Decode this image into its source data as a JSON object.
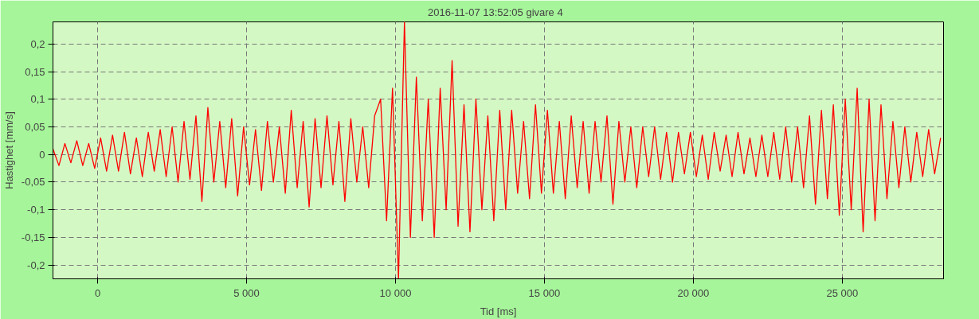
{
  "chart_data": {
    "type": "line",
    "title": "2016-11-07  13:52:05  givare 4",
    "xlabel": "Tid [ms]",
    "ylabel": "Hastighet [mm/s]",
    "x": [
      -1500,
      -1300,
      -1100,
      -900,
      -700,
      -500,
      -300,
      -100,
      100,
      300,
      500,
      700,
      900,
      1100,
      1300,
      1500,
      1700,
      1900,
      2100,
      2300,
      2500,
      2700,
      2900,
      3100,
      3300,
      3500,
      3700,
      3900,
      4100,
      4300,
      4500,
      4700,
      4900,
      5100,
      5300,
      5500,
      5700,
      5900,
      6100,
      6300,
      6500,
      6700,
      6900,
      7100,
      7300,
      7500,
      7700,
      7900,
      8100,
      8300,
      8500,
      8700,
      8900,
      9100,
      9300,
      9500,
      9700,
      9900,
      10100,
      10300,
      10500,
      10700,
      10900,
      11100,
      11300,
      11500,
      11700,
      11900,
      12100,
      12300,
      12500,
      12700,
      12900,
      13100,
      13300,
      13500,
      13700,
      13900,
      14100,
      14300,
      14500,
      14700,
      14900,
      15100,
      15300,
      15500,
      15700,
      15900,
      16100,
      16300,
      16500,
      16700,
      16900,
      17100,
      17300,
      17500,
      17700,
      17900,
      18100,
      18300,
      18500,
      18700,
      18900,
      19100,
      19300,
      19500,
      19700,
      19900,
      20100,
      20300,
      20500,
      20700,
      20900,
      21100,
      21300,
      21500,
      21700,
      21900,
      22100,
      22300,
      22500,
      22700,
      22900,
      23100,
      23300,
      23500,
      23700,
      23900,
      24100,
      24300,
      24500,
      24700,
      24900,
      25100,
      25300,
      25500,
      25700,
      25900,
      26100,
      26300,
      26500,
      26700,
      26900,
      27100,
      27300,
      27500,
      27700,
      27900,
      28100,
      28300
    ],
    "series": [
      {
        "color": "#ff0000",
        "values": [
          0.01,
          -0.02,
          0.02,
          -0.015,
          0.025,
          -0.02,
          0.02,
          -0.025,
          0.03,
          -0.03,
          0.035,
          -0.03,
          0.04,
          -0.035,
          0.03,
          -0.04,
          0.04,
          -0.03,
          0.045,
          -0.04,
          0.05,
          -0.05,
          0.06,
          -0.045,
          0.07,
          -0.085,
          0.085,
          -0.05,
          0.06,
          -0.06,
          0.065,
          -0.075,
          0.05,
          -0.055,
          0.045,
          -0.065,
          0.06,
          -0.05,
          0.05,
          -0.07,
          0.08,
          -0.06,
          0.06,
          -0.095,
          0.065,
          -0.06,
          0.07,
          -0.055,
          0.06,
          -0.085,
          0.065,
          -0.05,
          0.05,
          -0.06,
          0.07,
          0.1,
          -0.12,
          0.12,
          -0.225,
          0.24,
          -0.15,
          0.14,
          -0.12,
          0.1,
          -0.15,
          0.12,
          -0.1,
          0.17,
          -0.13,
          0.09,
          -0.14,
          0.1,
          -0.1,
          0.07,
          -0.12,
          0.08,
          -0.1,
          0.08,
          -0.07,
          0.06,
          -0.08,
          0.09,
          -0.07,
          0.08,
          -0.07,
          0.06,
          -0.08,
          0.07,
          -0.06,
          0.06,
          -0.07,
          0.06,
          -0.05,
          0.07,
          -0.09,
          0.06,
          -0.05,
          0.05,
          -0.06,
          0.05,
          -0.04,
          0.05,
          -0.045,
          0.04,
          -0.05,
          0.04,
          -0.035,
          0.04,
          -0.04,
          0.035,
          -0.045,
          0.04,
          -0.03,
          0.035,
          -0.04,
          0.04,
          -0.035,
          0.03,
          -0.04,
          0.035,
          -0.04,
          0.04,
          -0.045,
          0.05,
          -0.05,
          0.05,
          -0.06,
          0.07,
          -0.09,
          0.08,
          -0.08,
          0.09,
          -0.11,
          0.1,
          -0.1,
          0.12,
          -0.14,
          0.1,
          -0.12,
          0.09,
          -0.08,
          0.06,
          -0.06,
          0.05,
          -0.05,
          0.04,
          -0.04,
          0.045,
          -0.035,
          0.03
        ]
      }
    ],
    "xlim": [
      -1500,
      28400
    ],
    "ylim": [
      -0.225,
      0.24
    ],
    "xticks": [
      0,
      {
        "value": 5000,
        "label": "5 000"
      },
      {
        "value": 10000,
        "label": "10 000"
      },
      {
        "value": 15000,
        "label": "15 000"
      },
      {
        "value": 20000,
        "label": "20 000"
      },
      {
        "value": 25000,
        "label": "25 000"
      }
    ],
    "yticks": [
      {
        "value": -0.2,
        "label": "-0,2"
      },
      {
        "value": -0.15,
        "label": "-0,15"
      },
      {
        "value": -0.1,
        "label": "-0,1"
      },
      {
        "value": -0.05,
        "label": "-0,05"
      },
      0,
      {
        "value": 0.05,
        "label": "0,05"
      },
      {
        "value": 0.1,
        "label": "0,1"
      },
      {
        "value": 0.15,
        "label": "0,15"
      },
      {
        "value": 0.2,
        "label": "0,2"
      }
    ],
    "grid": true,
    "line_style": "solid"
  }
}
